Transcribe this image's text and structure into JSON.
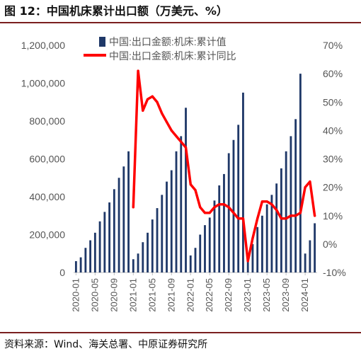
{
  "header": {
    "title": "图 12：中国机床累计出口额（万美元、%）"
  },
  "footer": {
    "source": "资料来源：Wind、海关总署、中原证券研究所"
  },
  "colors": {
    "bar": "#1f3868",
    "line": "#ff0000",
    "axis": "#bfbfbf"
  },
  "chart_data": {
    "type": "bar+line",
    "categories": [
      "2020-01",
      "2020-02",
      "2020-03",
      "2020-04",
      "2020-05",
      "2020-06",
      "2020-07",
      "2020-08",
      "2020-09",
      "2020-10",
      "2020-11",
      "2020-12",
      "2021-01",
      "2021-02",
      "2021-03",
      "2021-04",
      "2021-05",
      "2021-06",
      "2021-07",
      "2021-08",
      "2021-09",
      "2021-10",
      "2021-11",
      "2021-12",
      "2022-01",
      "2022-02",
      "2022-03",
      "2022-04",
      "2022-05",
      "2022-06",
      "2022-07",
      "2022-08",
      "2022-09",
      "2022-10",
      "2022-11",
      "2022-12",
      "2023-01",
      "2023-02",
      "2023-03",
      "2023-04",
      "2023-05",
      "2023-06",
      "2023-07",
      "2023-08",
      "2023-09",
      "2023-10",
      "2023-11",
      "2023-12",
      "2024-01",
      "2024-02",
      "2024-03"
    ],
    "x_tick_labels": [
      "2020-01",
      "2020-05",
      "2020-09",
      "2021-01",
      "2021-05",
      "2021-09",
      "2022-01",
      "2022-05",
      "2022-09",
      "2023-01",
      "2023-05",
      "2023-09",
      "2024-01"
    ],
    "series": [
      {
        "name": "中国:出口金额:机床:累计值",
        "kind": "bar",
        "axis": "left",
        "values": [
          60000,
          80000,
          130000,
          170000,
          210000,
          270000,
          320000,
          370000,
          440000,
          500000,
          560000,
          640000,
          70000,
          100000,
          160000,
          210000,
          280000,
          340000,
          410000,
          480000,
          540000,
          640000,
          720000,
          870000,
          90000,
          130000,
          200000,
          250000,
          290000,
          380000,
          460000,
          520000,
          630000,
          700000,
          780000,
          950000,
          70000,
          150000,
          240000,
          300000,
          360000,
          410000,
          470000,
          550000,
          640000,
          720000,
          810000,
          1050000,
          100000,
          170000,
          260000
        ]
      },
      {
        "name": "中国:出口金额:机床:累计同比",
        "kind": "line",
        "axis": "right",
        "values": [
          null,
          null,
          null,
          null,
          null,
          null,
          null,
          null,
          null,
          null,
          null,
          null,
          13,
          61,
          47,
          51,
          52,
          50,
          46,
          43,
          40,
          38,
          36,
          34,
          21,
          19,
          13,
          11,
          11,
          13,
          14,
          14,
          13,
          11,
          9,
          9,
          -6,
          2,
          9,
          15,
          15,
          14,
          12,
          9,
          9,
          10,
          10,
          11,
          20,
          22,
          10
        ]
      }
    ],
    "y_left": {
      "min": 0,
      "max": 1200000,
      "step": 200000,
      "tick_labels": [
        "0",
        "200,000",
        "400,000",
        "600,000",
        "800,000",
        "1,000,000",
        "1,200,000"
      ]
    },
    "y_right": {
      "min": -10,
      "max": 70,
      "step": 10,
      "tick_labels": [
        "-10%",
        "0%",
        "10%",
        "20%",
        "30%",
        "40%",
        "50%",
        "60%",
        "70%"
      ]
    },
    "grid": false,
    "legend": "top-center"
  }
}
